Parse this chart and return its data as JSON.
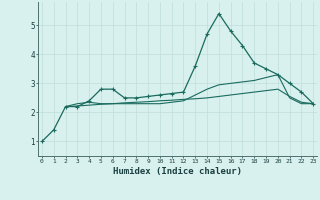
{
  "xlabel": "Humidex (Indice chaleur)",
  "x": [
    0,
    1,
    2,
    3,
    4,
    5,
    6,
    7,
    8,
    9,
    10,
    11,
    12,
    13,
    14,
    15,
    16,
    17,
    18,
    19,
    20,
    21,
    22,
    23
  ],
  "line1": [
    1.0,
    1.4,
    2.2,
    2.2,
    2.4,
    2.8,
    2.8,
    2.5,
    2.5,
    2.55,
    2.6,
    2.65,
    2.7,
    3.6,
    4.7,
    5.4,
    4.8,
    4.3,
    3.7,
    3.5,
    3.3,
    3.0,
    2.7,
    2.3
  ],
  "line2": [
    null,
    null,
    2.2,
    2.3,
    2.35,
    2.3,
    2.3,
    2.3,
    2.3,
    2.3,
    2.3,
    2.35,
    2.4,
    2.6,
    2.8,
    2.95,
    3.0,
    3.05,
    3.1,
    3.2,
    3.3,
    2.5,
    2.3,
    2.3
  ],
  "line3": [
    null,
    null,
    2.2,
    2.22,
    2.25,
    2.28,
    2.3,
    2.33,
    2.35,
    2.37,
    2.4,
    2.42,
    2.45,
    2.47,
    2.5,
    2.55,
    2.6,
    2.65,
    2.7,
    2.75,
    2.8,
    2.55,
    2.35,
    2.3
  ],
  "color_main": "#1a6b5e",
  "color_line2": "#1a6b5e",
  "color_line3": "#1a6b5e",
  "bg_color": "#d8f0ee",
  "grid_color": "#c0deda",
  "ylim": [
    0.5,
    5.8
  ],
  "yticks": [
    1,
    2,
    3,
    4,
    5
  ],
  "xlim": [
    -0.3,
    23.3
  ]
}
